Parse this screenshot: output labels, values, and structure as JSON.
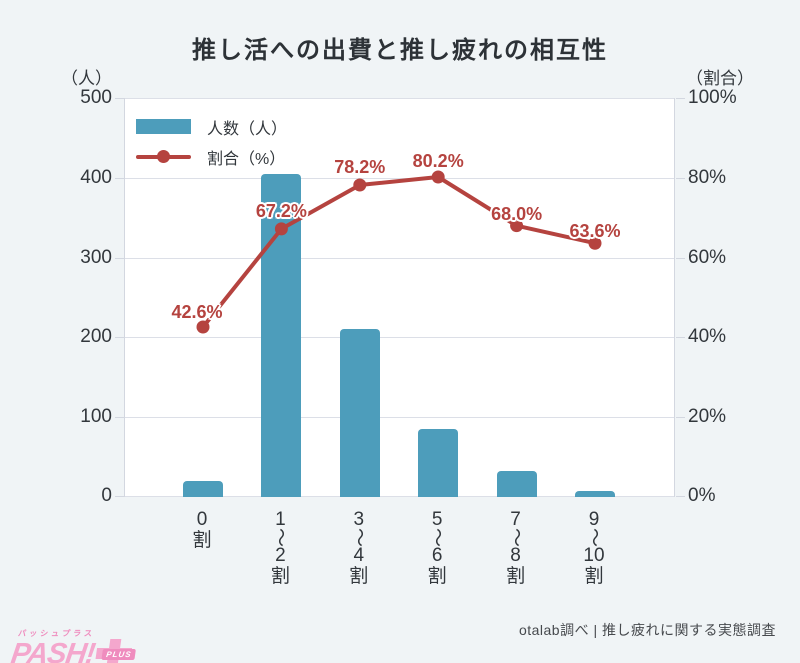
{
  "title": "推し活への出費と推し疲れの相互性",
  "left_axis": {
    "unit": "（人）",
    "ticks": [
      "500",
      "400",
      "300",
      "200",
      "100",
      "0"
    ]
  },
  "right_axis": {
    "unit": "（割合）",
    "ticks": [
      "100%",
      "80%",
      "60%",
      "40%",
      "20%",
      "0%"
    ]
  },
  "legend": {
    "bar_label": "人数（人）",
    "line_label": "割合（%）"
  },
  "source": "otalab調べ | 推し疲れに関する実態調査",
  "logo": {
    "kana": "パッシュプラス",
    "text": "PASH!",
    "plus_label": "PLUS"
  },
  "colors": {
    "background": "#f0f4f6",
    "plot": "#ffffff",
    "grid": "#dcdfe7",
    "bar": "#4d9dbb",
    "line": "#b5433f",
    "text": "#32373c",
    "logo_pink": "#f4a7cd"
  },
  "chart_data": {
    "type": "bar",
    "subtype": "bar+line combo, dual axis",
    "title": "推し活への出費と推し疲れの相互性",
    "categories": [
      "0割",
      "1〜2割",
      "3〜4割",
      "5〜6割",
      "7〜8割",
      "9〜10割"
    ],
    "categories_stacked": [
      [
        "0",
        "割"
      ],
      [
        "1",
        "〜",
        "2",
        "割"
      ],
      [
        "3",
        "〜",
        "4",
        "割"
      ],
      [
        "5",
        "〜",
        "6",
        "割"
      ],
      [
        "7",
        "〜",
        "8",
        "割"
      ],
      [
        "9",
        "〜",
        "10",
        "割"
      ]
    ],
    "series": [
      {
        "name": "人数（人）",
        "type": "bar",
        "axis": "left",
        "values": [
          20,
          405,
          210,
          85,
          33,
          7
        ]
      },
      {
        "name": "割合（%）",
        "type": "line",
        "axis": "right",
        "values": [
          42.6,
          67.2,
          78.2,
          80.2,
          68.0,
          63.6
        ],
        "labels": [
          "42.6%",
          "67.2%",
          "78.2%",
          "80.2%",
          "68.0%",
          "63.6%"
        ]
      }
    ],
    "left_ylabel": "（人）",
    "right_ylabel": "（割合）",
    "left_ylim": [
      0,
      500
    ],
    "right_ylim": [
      0,
      100
    ],
    "grid": true,
    "legend_position": "top-left inside plot"
  }
}
